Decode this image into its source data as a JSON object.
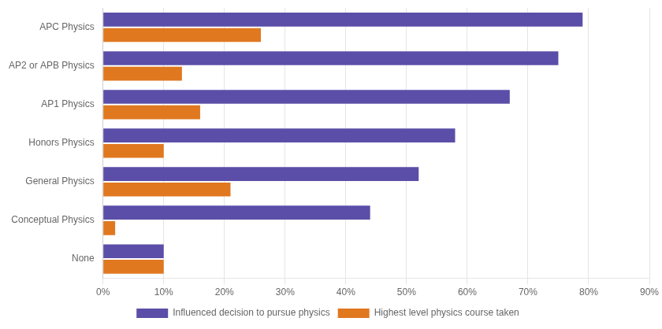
{
  "chart_data": {
    "type": "bar",
    "orientation": "horizontal",
    "categories": [
      "None",
      "Conceptual Physics",
      "General Physics",
      "Honors Physics",
      "AP1 Physics",
      "AP2 or APB Physics",
      "APC Physics"
    ],
    "series": [
      {
        "name": "Influenced decision to pursue physics",
        "color": "#5b4ea8",
        "values": [
          10,
          44,
          52,
          58,
          67,
          75,
          79
        ]
      },
      {
        "name": "Highest level physics course taken",
        "color": "#e07820",
        "values": [
          10,
          2,
          21,
          10,
          16,
          13,
          26
        ]
      }
    ],
    "xlim": [
      0,
      90
    ],
    "xticks": [
      {
        "value": 0,
        "label": "0%"
      },
      {
        "value": 10,
        "label": "10%"
      },
      {
        "value": 20,
        "label": "20%"
      },
      {
        "value": 30,
        "label": "30%"
      },
      {
        "value": 40,
        "label": "40%"
      },
      {
        "value": 50,
        "label": "50%"
      },
      {
        "value": 60,
        "label": "60%"
      },
      {
        "value": 70,
        "label": "70%"
      },
      {
        "value": 80,
        "label": "80%"
      },
      {
        "value": 90,
        "label": "90%"
      }
    ],
    "grid": true,
    "legend": "bottom"
  }
}
